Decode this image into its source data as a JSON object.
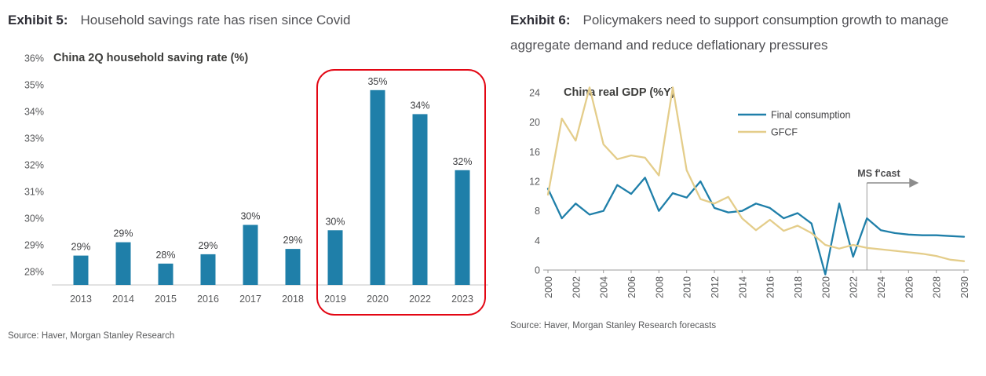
{
  "exhibit5": {
    "label": "Exhibit 5:",
    "title": "Household savings rate has risen since Covid",
    "source": "Source: Haver, Morgan Stanley Research"
  },
  "exhibit6": {
    "label": "Exhibit 6:",
    "title": "Policymakers need to support consumption growth to manage aggregate demand and reduce deflationary pressures",
    "source": "Source: Haver, Morgan Stanley Research forecasts"
  },
  "chart_data": [
    {
      "type": "bar",
      "title": "China 2Q household saving rate (%)",
      "categories": [
        "2013",
        "2014",
        "2015",
        "2016",
        "2017",
        "2018",
        "2019",
        "2020",
        "2022",
        "2023"
      ],
      "values": [
        28.6,
        29.1,
        28.3,
        28.65,
        29.75,
        28.85,
        29.55,
        34.8,
        33.9,
        31.8
      ],
      "data_labels": [
        "29%",
        "29%",
        "28%",
        "29%",
        "30%",
        "29%",
        "30%",
        "35%",
        "34%",
        "32%"
      ],
      "yticks": [
        "28%",
        "29%",
        "30%",
        "31%",
        "32%",
        "33%",
        "34%",
        "35%",
        "36%"
      ],
      "ytick_values": [
        28,
        29,
        30,
        31,
        32,
        33,
        34,
        35,
        36
      ],
      "ylim": [
        27.5,
        36
      ],
      "grid": false,
      "bar_color": "#1f7fa9",
      "highlight_box": {
        "categories": [
          "2019",
          "2020",
          "2022",
          "2023"
        ],
        "color": "#e30613"
      }
    },
    {
      "type": "line",
      "title": "China real GDP (%Y)",
      "x_start": 2000,
      "x_end": 2030,
      "xticks": [
        2000,
        2002,
        2004,
        2006,
        2008,
        2010,
        2012,
        2014,
        2016,
        2018,
        2020,
        2022,
        2024,
        2026,
        2028,
        2030
      ],
      "yticks": [
        0,
        4,
        8,
        12,
        16,
        20,
        24
      ],
      "ylim": [
        0,
        24
      ],
      "grid": false,
      "legend_position": "top-right",
      "series": [
        {
          "name": "Final consumption",
          "color": "#1f7fa9",
          "values": [
            11,
            7,
            9,
            7.5,
            8,
            11.5,
            10.3,
            12.5,
            8,
            10.4,
            9.8,
            12,
            8.4,
            7.8,
            8,
            9,
            8.4,
            7,
            7.7,
            6.3,
            -0.6,
            9,
            1.8,
            7,
            5.4,
            5,
            4.8,
            4.7,
            4.7,
            4.6,
            4.5
          ]
        },
        {
          "name": "GFCF",
          "color": "#e4cd8a",
          "values": [
            10.2,
            20.5,
            17.5,
            24.7,
            17,
            15,
            15.5,
            15.2,
            12.8,
            24.7,
            13.5,
            9.6,
            9,
            9.9,
            7,
            5.4,
            6.8,
            5.3,
            6,
            5,
            3.4,
            2.9,
            3.4,
            3,
            2.8,
            2.6,
            2.4,
            2.2,
            1.9,
            1.4,
            1.2
          ]
        }
      ],
      "annotation": {
        "text": "MS f'cast",
        "x": 2023
      }
    }
  ]
}
